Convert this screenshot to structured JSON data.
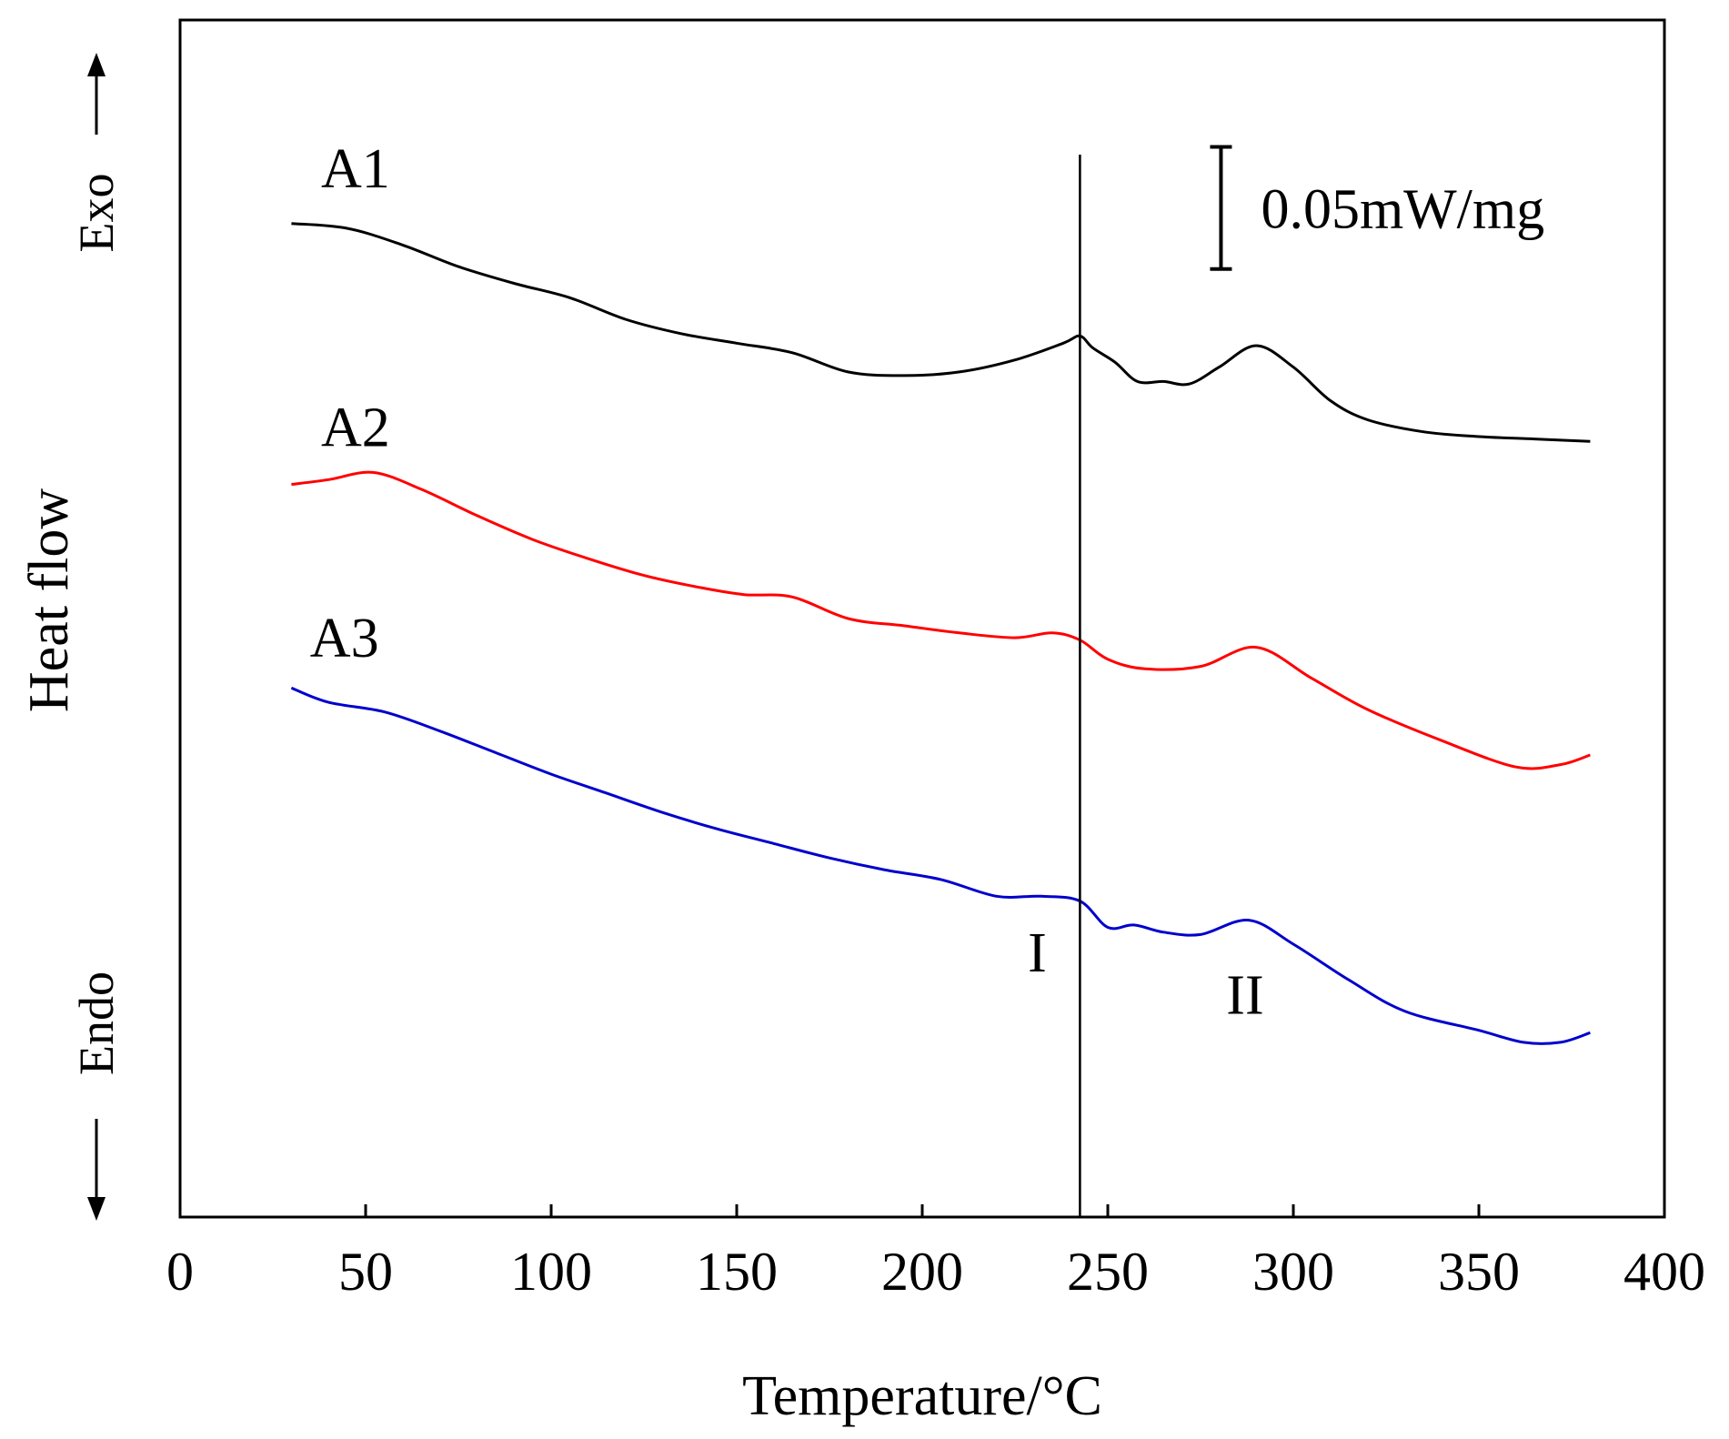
{
  "chart_data": {
    "type": "line",
    "xlabel": "Temperature/°C",
    "ylabel": "Heat  flow",
    "exo_label": "Exo",
    "endo_label": "Endo",
    "xlim": [
      0,
      400
    ],
    "xticks": [
      "0",
      "50",
      "100",
      "150",
      "200",
      "250",
      "300",
      "350",
      "400"
    ],
    "ylim": [
      0,
      100
    ],
    "grid": false,
    "scale_bar": {
      "label": "0.05mW/mg",
      "y_from": 89.4,
      "y_to": 79.2
    },
    "reference_line": {
      "x": 242.5
    },
    "peak_labels": [
      {
        "text": "I",
        "x": 231,
        "y": 20.5
      },
      {
        "text": "II",
        "x": 287,
        "y": 17.0
      }
    ],
    "series": [
      {
        "name": "A1",
        "color": "#000000",
        "label_at": {
          "x": 38,
          "y": 86.0
        },
        "x": [
          30,
          45,
          60,
          75,
          90,
          105,
          120,
          135,
          150,
          165,
          180,
          195,
          210,
          225,
          238,
          242.5,
          246,
          252,
          258,
          265,
          272,
          280,
          290,
          300,
          310,
          320,
          335,
          350,
          365,
          380
        ],
        "y": [
          83.0,
          82.6,
          81.2,
          79.4,
          78.0,
          76.8,
          75.0,
          73.8,
          73.0,
          72.2,
          70.6,
          70.3,
          70.6,
          71.6,
          73.0,
          73.6,
          72.6,
          71.4,
          69.8,
          69.8,
          69.6,
          71.0,
          72.8,
          71.0,
          68.2,
          66.6,
          65.6,
          65.2,
          65.0,
          64.8
        ]
      },
      {
        "name": "A2",
        "color": "#ff0000",
        "label_at": {
          "x": 38,
          "y": 64.4
        },
        "x": [
          30,
          40,
          52,
          65,
          80,
          95,
          110,
          125,
          140,
          152,
          165,
          180,
          195,
          210,
          225,
          235,
          242.5,
          250,
          260,
          275,
          290,
          305,
          320,
          340,
          360,
          372,
          380
        ],
        "y": [
          61.2,
          61.6,
          62.2,
          60.8,
          58.6,
          56.6,
          55.0,
          53.6,
          52.6,
          52.0,
          51.8,
          50.0,
          49.4,
          48.8,
          48.4,
          48.8,
          48.2,
          46.6,
          45.8,
          46.0,
          47.6,
          45.0,
          42.4,
          39.8,
          37.6,
          37.8,
          38.6
        ]
      },
      {
        "name": "A3",
        "color": "#0000cc",
        "label_at": {
          "x": 35,
          "y": 46.8
        },
        "x": [
          30,
          40,
          55,
          70,
          85,
          100,
          115,
          130,
          145,
          160,
          175,
          190,
          205,
          220,
          232,
          242.5,
          250,
          257,
          265,
          275,
          288,
          300,
          315,
          330,
          350,
          362,
          372,
          380
        ],
        "y": [
          44.2,
          43.0,
          42.2,
          40.6,
          38.8,
          37.0,
          35.4,
          33.8,
          32.4,
          31.2,
          30.0,
          29.0,
          28.2,
          26.8,
          26.8,
          26.4,
          24.2,
          24.4,
          23.8,
          23.6,
          24.8,
          22.8,
          19.8,
          17.2,
          15.6,
          14.6,
          14.6,
          15.4
        ]
      }
    ]
  }
}
